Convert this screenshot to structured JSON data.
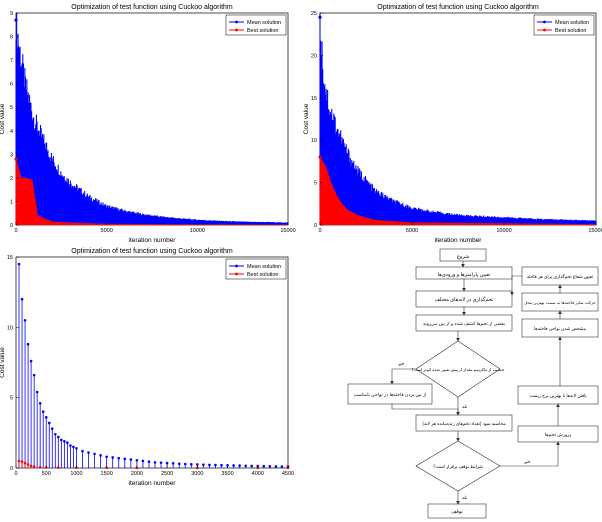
{
  "chart_data": [
    {
      "type": "area",
      "title": "Optimization of test function using Cuckoo algorithm",
      "xlabel": "iteration number",
      "ylabel": "Cost value",
      "xlim": [
        0,
        15000
      ],
      "ylim": [
        0,
        9
      ],
      "x_ticks": [
        0,
        5000,
        10000,
        15000
      ],
      "y_ticks": [
        0,
        1,
        2,
        3,
        4,
        5,
        6,
        7,
        8,
        9
      ],
      "legend_position": "top-right",
      "series": [
        {
          "name": "Mean solution",
          "color": "#0000ff",
          "x": [
            0,
            200,
            500,
            1000,
            1500,
            2000,
            2500,
            3000,
            4000,
            5000,
            6000,
            7000,
            8000,
            9000,
            10000,
            11000,
            12000,
            13000,
            14000,
            15000
          ],
          "values": [
            8.7,
            7.5,
            6.0,
            4.5,
            3.6,
            2.8,
            2.2,
            1.8,
            1.2,
            0.8,
            0.6,
            0.45,
            0.35,
            0.28,
            0.22,
            0.18,
            0.15,
            0.13,
            0.12,
            0.1
          ]
        },
        {
          "name": "Best solution",
          "color": "#ff0000",
          "x": [
            0,
            300,
            600,
            900,
            1200,
            1500,
            2000,
            3000,
            5000,
            10000,
            15000
          ],
          "values": [
            2.8,
            2.0,
            2.0,
            1.9,
            0.4,
            0.3,
            0.15,
            0.1,
            0.05,
            0.03,
            0.02
          ]
        }
      ]
    },
    {
      "type": "area",
      "title": "Optimization of test function using Cuckoo algorithm",
      "xlabel": "iteration number",
      "ylabel": "Cost value",
      "xlim": [
        0,
        15000
      ],
      "ylim": [
        0,
        25
      ],
      "x_ticks": [
        0,
        5000,
        10000,
        15000
      ],
      "y_ticks": [
        0,
        5,
        10,
        15,
        20,
        25
      ],
      "legend_position": "top-right",
      "series": [
        {
          "name": "Mean solution",
          "color": "#0000ff",
          "x": [
            0,
            200,
            500,
            1000,
            1500,
            2000,
            3000,
            4000,
            5000,
            6000,
            7000,
            8000,
            10000,
            12000,
            15000
          ],
          "values": [
            24.5,
            17.5,
            14.0,
            11.0,
            8.5,
            6.5,
            4.0,
            2.8,
            2.0,
            1.6,
            1.3,
            1.1,
            0.9,
            0.7,
            0.5
          ]
        },
        {
          "name": "Best solution",
          "color": "#ff0000",
          "x": [
            0,
            300,
            600,
            900,
            1200,
            1500,
            2000,
            3000,
            5000,
            10000,
            15000
          ],
          "values": [
            8.0,
            7.0,
            5.0,
            3.5,
            2.5,
            1.8,
            1.2,
            0.6,
            0.3,
            0.2,
            0.1
          ]
        }
      ]
    },
    {
      "type": "line",
      "title": "Optimization of test function using Cuckoo algorithm",
      "xlabel": "iteration number",
      "ylabel": "Cost value",
      "xlim": [
        0,
        4500
      ],
      "ylim": [
        0,
        15
      ],
      "x_ticks": [
        0,
        500,
        1000,
        1500,
        2000,
        2500,
        3000,
        3500,
        4000,
        4500
      ],
      "y_ticks": [
        0,
        5,
        10,
        15
      ],
      "legend_position": "top-right",
      "series": [
        {
          "name": "Mean solution",
          "color": "#0000ff",
          "x": [
            50,
            100,
            150,
            200,
            250,
            300,
            350,
            400,
            450,
            500,
            550,
            600,
            650,
            700,
            750,
            800,
            850,
            900,
            950,
            1000,
            1100,
            1200,
            1300,
            1400,
            1500,
            1600,
            1700,
            1800,
            1900,
            2000,
            2100,
            2200,
            2300,
            2400,
            2500,
            2600,
            2700,
            2800,
            2900,
            3000,
            3100,
            3200,
            3300,
            3400,
            3500,
            3600,
            3700,
            3800,
            3900,
            4000,
            4100,
            4200,
            4300,
            4400,
            4500
          ],
          "values": [
            14.5,
            12.0,
            10.5,
            8.8,
            7.6,
            6.6,
            5.4,
            4.6,
            4.0,
            3.6,
            3.2,
            2.8,
            2.4,
            2.2,
            2.0,
            1.9,
            1.8,
            1.6,
            1.5,
            1.4,
            1.2,
            1.1,
            1.0,
            0.9,
            0.8,
            0.75,
            0.7,
            0.65,
            0.6,
            0.55,
            0.5,
            0.45,
            0.4,
            0.38,
            0.35,
            0.33,
            0.3,
            0.28,
            0.26,
            0.25,
            0.24,
            0.22,
            0.21,
            0.2,
            0.19,
            0.18,
            0.17,
            0.16,
            0.15,
            0.14,
            0.13,
            0.12,
            0.11,
            0.1,
            0.1
          ]
        },
        {
          "name": "Best solution",
          "color": "#ff0000",
          "x": [
            50,
            100,
            150,
            200,
            250,
            300,
            400,
            500,
            700,
            1000,
            1500,
            2000,
            3000,
            4000,
            4500
          ],
          "values": [
            0.5,
            0.45,
            0.35,
            0.25,
            0.15,
            0.1,
            0.05,
            0.04,
            0.03,
            0.02,
            0.02,
            0.01,
            0.01,
            0.01,
            0.01
          ]
        }
      ]
    }
  ],
  "flowchart": {
    "nodes": [
      {
        "id": "n1",
        "text": "شروع"
      },
      {
        "id": "n2",
        "text": "تعیین پارامترها و ورودی‌ها"
      },
      {
        "id": "n3",
        "text": "تخم‌گذاری در لانه‌های مختلف"
      },
      {
        "id": "n4",
        "text": "بعضی از تخم‌ها کشف شده و از بین می‌روند"
      },
      {
        "id": "n5",
        "text": "جمعیت از ماکزیمم مقدار از پیش تعیین شده کم‌تر است؟"
      },
      {
        "id": "n6",
        "text": "از بین بردن فاخته‌ها در نواحی نامناسب"
      },
      {
        "id": "n7",
        "text": "محاسبه سود (تعداد تخم‌های زنده‌مانده هر لانه)"
      },
      {
        "id": "n8",
        "text": "شرایط توقف برقرار است؟"
      },
      {
        "id": "n9",
        "text": "توقف"
      },
      {
        "id": "n10",
        "text": "پرورش تخم‌ها"
      },
      {
        "id": "n11",
        "text": "یافتن لانه‌ها با بهترین نرخ زیست"
      },
      {
        "id": "n12",
        "text": "مشخص شدن نواحی فاخته‌ها"
      },
      {
        "id": "n13",
        "text": "حرکت سایر فاخته‌ها به سمت بهترین محل"
      },
      {
        "id": "n14",
        "text": "تعیین شعاع تخم‌گذاری برای هر فاخته"
      }
    ],
    "labels": {
      "no1": "خیر",
      "yes1": "بله",
      "no2": "خیر",
      "yes2": "بله"
    }
  }
}
